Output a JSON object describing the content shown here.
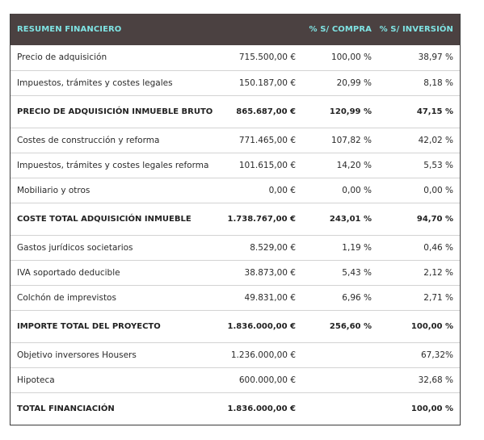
{
  "header": {
    "col1": "RESUMEN FINANCIERO",
    "col2": "",
    "col3": "% S/ COMPRA",
    "col4": "% S/ INVERSIÓN"
  },
  "rows": [
    {
      "label": "Precio de adquisición",
      "amount": "715.500,00 €",
      "compra": "100,00 %",
      "inversion": "38,97 %",
      "total": false
    },
    {
      "label": "Impuestos, trámites y costes legales",
      "amount": "150.187,00 €",
      "compra": "20,99 %",
      "inversion": "8,18 %",
      "total": false
    },
    {
      "label": "PRECIO DE ADQUISICIÓN INMUEBLE BRUTO",
      "amount": "865.687,00 €",
      "compra": "120,99 %",
      "inversion": "47,15 %",
      "total": true
    },
    {
      "label": "Costes de construcción y reforma",
      "amount": "771.465,00 €",
      "compra": "107,82 %",
      "inversion": "42,02 %",
      "total": false
    },
    {
      "label": "Impuestos, trámites y costes legales reforma",
      "amount": "101.615,00 €",
      "compra": "14,20 %",
      "inversion": "5,53 %",
      "total": false
    },
    {
      "label": "Mobiliario y otros",
      "amount": "0,00 €",
      "compra": "0,00 %",
      "inversion": "0,00 %",
      "total": false
    },
    {
      "label": "COSTE TOTAL ADQUISICIÓN INMUEBLE",
      "amount": "1.738.767,00 €",
      "compra": "243,01 %",
      "inversion": "94,70 %",
      "total": true
    },
    {
      "label": "Gastos jurídicos societarios",
      "amount": "8.529,00 €",
      "compra": "1,19 %",
      "inversion": "0,46 %",
      "total": false
    },
    {
      "label": "IVA soportado deducible",
      "amount": "38.873,00 €",
      "compra": "5,43 %",
      "inversion": "2,12 %",
      "total": false
    },
    {
      "label": "Colchón de imprevistos",
      "amount": "49.831,00 €",
      "compra": "6,96 %",
      "inversion": "2,71 %",
      "total": false
    },
    {
      "label": "IMPORTE TOTAL DEL PROYECTO",
      "amount": "1.836.000,00 €",
      "compra": "256,60 %",
      "inversion": "100,00 %",
      "total": true
    },
    {
      "label": "Objetivo inversores Housers",
      "amount": "1.236.000,00 €",
      "compra": "",
      "inversion": "67,32%",
      "total": false
    },
    {
      "label": "Hipoteca",
      "amount": "600.000,00 €",
      "compra": "",
      "inversion": "32,68 %",
      "total": false
    },
    {
      "label": "TOTAL FINANCIACIÓN",
      "amount": "1.836.000,00 €",
      "compra": "",
      "inversion": "100,00 %",
      "total": true
    }
  ],
  "colors": {
    "header_bg": "#4b4141",
    "header_text": "#7fe3e3",
    "row_divider": "#d3d3d3",
    "frame": "#3b3b3b"
  }
}
